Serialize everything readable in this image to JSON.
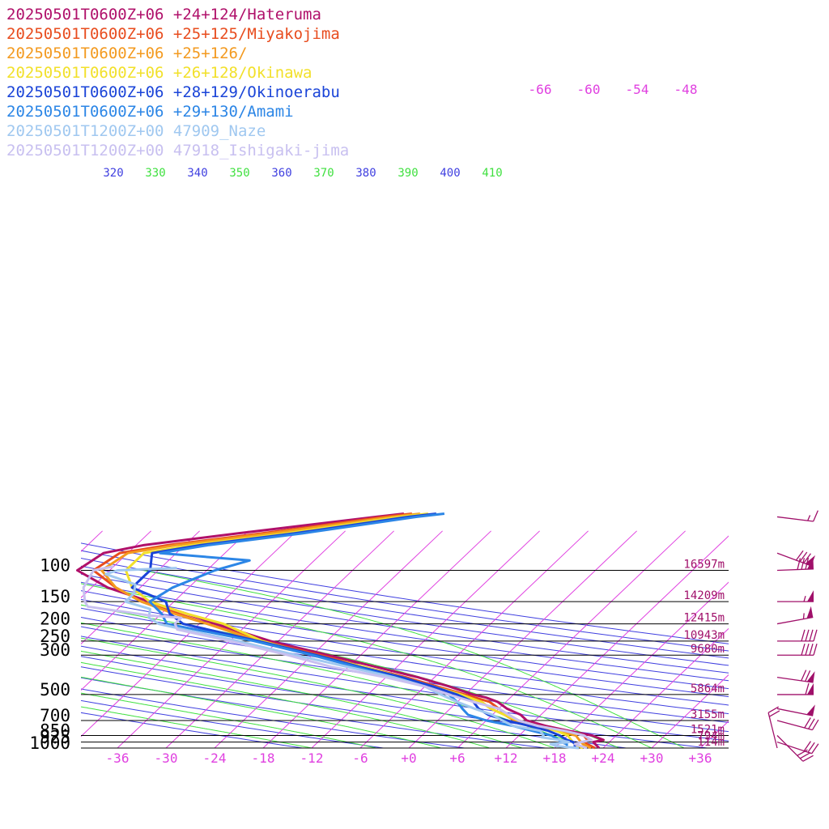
{
  "colors": {
    "isotherm": "#e040e0",
    "dry_adiabat": "#4040e0",
    "moist_adiabat": "#40e040",
    "isobar": "#000000",
    "height_label": "#a0106a",
    "wind_barb": "#a0106a"
  },
  "chart_data": {
    "type": "line",
    "diagram": "skew-T log-p",
    "pressure_levels": [
      100,
      150,
      200,
      250,
      300,
      500,
      700,
      850,
      925,
      1000
    ],
    "pressure_tick_labels": [
      "100",
      "150",
      "200",
      "250",
      "300",
      "500",
      "700",
      "850",
      "925",
      "1000"
    ],
    "height_labels": [
      {
        "p": 100,
        "label": "16597m"
      },
      {
        "p": 150,
        "label": "14209m"
      },
      {
        "p": 200,
        "label": "12415m"
      },
      {
        "p": 250,
        "label": "10943m"
      },
      {
        "p": 300,
        "label": "9680m"
      },
      {
        "p": 500,
        "label": "5864m"
      },
      {
        "p": 700,
        "label": "3155m"
      },
      {
        "p": 850,
        "label": "1521m"
      },
      {
        "p": 925,
        "label": "794m"
      },
      {
        "p": 1000,
        "label": "114m"
      }
    ],
    "temperature_ticks": [
      -36,
      -30,
      -24,
      -18,
      -12,
      -6,
      0,
      6,
      12,
      18,
      24,
      30,
      36
    ],
    "temperature_tick_labels": [
      "-36",
      "-30",
      "-24",
      "-18",
      "-12",
      "-6",
      "+0",
      "+6",
      "+12",
      "+18",
      "+24",
      "+30",
      "+36"
    ],
    "upper_isotherm_labels": [
      "-66",
      "-60",
      "-54",
      "-48"
    ],
    "theta_labels": [
      {
        "label": "320",
        "kind": "dry"
      },
      {
        "label": "330",
        "kind": "moist"
      },
      {
        "label": "340",
        "kind": "dry"
      },
      {
        "label": "350",
        "kind": "moist"
      },
      {
        "label": "360",
        "kind": "dry"
      },
      {
        "label": "370",
        "kind": "moist"
      },
      {
        "label": "380",
        "kind": "dry"
      },
      {
        "label": "390",
        "kind": "moist"
      },
      {
        "label": "400",
        "kind": "dry"
      },
      {
        "label": "410",
        "kind": "moist"
      }
    ],
    "series": [
      {
        "name": "20250501T0600Z+06 +24+124/Hateruma",
        "color": "#b0106a",
        "points": [
          [
            1000,
            23.5
          ],
          [
            950,
            22.5
          ],
          [
            925,
            22
          ],
          [
            900,
            23
          ],
          [
            850,
            21
          ],
          [
            800,
            17.5
          ],
          [
            750,
            14
          ],
          [
            700,
            11
          ],
          [
            650,
            9.5
          ],
          [
            600,
            7
          ],
          [
            550,
            5
          ],
          [
            520,
            3
          ],
          [
            500,
            1
          ],
          [
            450,
            -3
          ],
          [
            400,
            -8
          ],
          [
            350,
            -14.5
          ],
          [
            300,
            -22
          ],
          [
            250,
            -31
          ],
          [
            200,
            -40
          ],
          [
            175,
            -45
          ],
          [
            150,
            -51
          ],
          [
            125,
            -58
          ],
          [
            100,
            -64
          ],
          [
            80,
            -63
          ],
          [
            72,
            -59
          ],
          [
            62,
            -49
          ],
          [
            50,
            -34
          ],
          [
            48,
            -31
          ]
        ]
      },
      {
        "name": "20250501T0600Z+06 +25+125/Miyakojima",
        "color": "#e84c1e",
        "points": [
          [
            1000,
            23
          ],
          [
            950,
            21.5
          ],
          [
            925,
            21
          ],
          [
            900,
            21
          ],
          [
            850,
            20
          ],
          [
            800,
            17
          ],
          [
            750,
            13
          ],
          [
            700,
            10
          ],
          [
            650,
            8
          ],
          [
            600,
            6
          ],
          [
            550,
            4
          ],
          [
            500,
            0
          ],
          [
            450,
            -4.5
          ],
          [
            400,
            -9.5
          ],
          [
            350,
            -16
          ],
          [
            300,
            -23
          ],
          [
            250,
            -32
          ],
          [
            200,
            -41
          ],
          [
            175,
            -46
          ],
          [
            150,
            -52
          ],
          [
            125,
            -57
          ],
          [
            100,
            -62
          ],
          [
            80,
            -61
          ],
          [
            72,
            -56
          ],
          [
            62,
            -46
          ],
          [
            50,
            -33
          ],
          [
            48,
            -30
          ]
        ]
      },
      {
        "name": "20250501T0600Z+06 +25+126/",
        "color": "#f39a1f",
        "points": [
          [
            1000,
            22.5
          ],
          [
            950,
            21
          ],
          [
            925,
            20.5
          ],
          [
            900,
            20
          ],
          [
            850,
            19
          ],
          [
            800,
            16
          ],
          [
            750,
            13
          ],
          [
            700,
            9.5
          ],
          [
            650,
            7.5
          ],
          [
            600,
            5
          ],
          [
            550,
            3
          ],
          [
            500,
            -0.5
          ],
          [
            450,
            -5
          ],
          [
            400,
            -10
          ],
          [
            350,
            -16.5
          ],
          [
            300,
            -23.5
          ],
          [
            250,
            -32.5
          ],
          [
            200,
            -41
          ],
          [
            175,
            -46.5
          ],
          [
            150,
            -52
          ],
          [
            125,
            -57
          ],
          [
            100,
            -61
          ],
          [
            80,
            -60
          ],
          [
            72,
            -55
          ],
          [
            62,
            -45
          ],
          [
            50,
            -32
          ],
          [
            48,
            -29
          ]
        ]
      },
      {
        "name": "20250501T0600Z+06 +26+128/Okinawa",
        "color": "#f2e02a",
        "points": [
          [
            1000,
            21.5
          ],
          [
            950,
            20
          ],
          [
            925,
            19.5
          ],
          [
            900,
            19
          ],
          [
            850,
            18
          ],
          [
            800,
            16
          ],
          [
            750,
            13
          ],
          [
            700,
            10
          ],
          [
            650,
            7.5
          ],
          [
            600,
            5
          ],
          [
            550,
            3
          ],
          [
            500,
            -0.5
          ],
          [
            450,
            -5
          ],
          [
            400,
            -10
          ],
          [
            350,
            -16
          ],
          [
            300,
            -24
          ],
          [
            250,
            -32
          ],
          [
            200,
            -39
          ],
          [
            175,
            -45
          ],
          [
            150,
            -51
          ],
          [
            125,
            -55
          ],
          [
            100,
            -58
          ],
          [
            80,
            -58
          ],
          [
            72,
            -53
          ],
          [
            62,
            -43
          ],
          [
            50,
            -31
          ],
          [
            48,
            -28
          ]
        ]
      },
      {
        "name": "20250501T0600Z+06 +28+129/Okinoerabu",
        "color": "#1a44d8",
        "points": [
          [
            1000,
            20.5
          ],
          [
            950,
            20
          ],
          [
            925,
            19.5
          ],
          [
            900,
            18.5
          ],
          [
            850,
            17
          ],
          [
            800,
            15
          ],
          [
            750,
            12
          ],
          [
            700,
            8.5
          ],
          [
            650,
            5.5
          ],
          [
            600,
            3.5
          ],
          [
            550,
            2
          ],
          [
            500,
            -1
          ],
          [
            450,
            -5
          ],
          [
            400,
            -10
          ],
          [
            350,
            -16.5
          ],
          [
            300,
            -23.5
          ],
          [
            250,
            -32.5
          ],
          [
            200,
            -44
          ],
          [
            175,
            -47
          ],
          [
            150,
            -49
          ],
          [
            125,
            -55
          ],
          [
            100,
            -55
          ],
          [
            80,
            -57
          ],
          [
            72,
            -52
          ],
          [
            62,
            -42
          ],
          [
            50,
            -30
          ],
          [
            48,
            -27
          ]
        ]
      },
      {
        "name": "20250501T0600Z+06 +29+130/Amami",
        "color": "#2c86e6",
        "points": [
          [
            1000,
            19.5
          ],
          [
            950,
            19
          ],
          [
            925,
            18
          ],
          [
            900,
            17.5
          ],
          [
            850,
            16
          ],
          [
            800,
            13
          ],
          [
            750,
            10
          ],
          [
            700,
            6
          ],
          [
            650,
            3
          ],
          [
            600,
            1.5
          ],
          [
            550,
            0
          ],
          [
            500,
            -2
          ],
          [
            450,
            -6
          ],
          [
            400,
            -11
          ],
          [
            350,
            -17
          ],
          [
            300,
            -24
          ],
          [
            250,
            -33
          ],
          [
            200,
            -46
          ],
          [
            175,
            -48
          ],
          [
            150,
            -51
          ],
          [
            125,
            -50
          ],
          [
            100,
            -47
          ],
          [
            88,
            -44
          ],
          [
            80,
            -56
          ],
          [
            72,
            -51
          ],
          [
            62,
            -41
          ],
          [
            50,
            -29
          ],
          [
            48,
            -26
          ]
        ]
      },
      {
        "name": "20250501T1200Z+00 47909_Naze",
        "color": "#a0c8f0",
        "points": [
          [
            1000,
            21
          ],
          [
            975,
            18
          ],
          [
            950,
            17
          ],
          [
            925,
            19
          ],
          [
            900,
            17.5
          ],
          [
            870,
            15
          ],
          [
            850,
            15
          ],
          [
            800,
            14
          ],
          [
            750,
            10
          ],
          [
            700,
            8
          ],
          [
            650,
            6
          ],
          [
            600,
            3
          ],
          [
            550,
            0
          ],
          [
            500,
            -3
          ],
          [
            450,
            -6
          ],
          [
            400,
            -11
          ],
          [
            350,
            -18
          ],
          [
            300,
            -26
          ],
          [
            250,
            -35
          ],
          [
            220,
            -42
          ],
          [
            200,
            -47
          ],
          [
            185,
            -49
          ],
          [
            165,
            -50
          ],
          [
            150,
            -54
          ],
          [
            135,
            -54
          ],
          [
            120,
            -55
          ],
          [
            105,
            -60
          ],
          [
            100,
            -59
          ],
          [
            97,
            -52
          ]
        ]
      },
      {
        "name": "20250501T1200Z+00 47918_Ishigaki-jima",
        "color": "#c8c0f0",
        "points": [
          [
            1000,
            22
          ],
          [
            950,
            20
          ],
          [
            925,
            20.5
          ],
          [
            900,
            21.5
          ],
          [
            850,
            20
          ],
          [
            800,
            17
          ],
          [
            750,
            13
          ],
          [
            700,
            10
          ],
          [
            650,
            8
          ],
          [
            600,
            6
          ],
          [
            550,
            2
          ],
          [
            500,
            -2
          ],
          [
            450,
            -6
          ],
          [
            400,
            -12
          ],
          [
            350,
            -20
          ],
          [
            300,
            -27
          ],
          [
            250,
            -36
          ],
          [
            215,
            -44
          ],
          [
            200,
            -45
          ],
          [
            185,
            -45
          ],
          [
            180,
            -49
          ],
          [
            160,
            -58
          ],
          [
            150,
            -59
          ],
          [
            125,
            -61
          ],
          [
            100,
            -62
          ],
          [
            95,
            -60
          ]
        ]
      }
    ],
    "wind_barbs": [
      {
        "p": 50,
        "u": -16,
        "v": 2
      },
      {
        "p": 80,
        "u": -75,
        "v": 28
      },
      {
        "p": 100,
        "u": -80,
        "v": -3
      },
      {
        "p": 150,
        "u": -55,
        "v": 0
      },
      {
        "p": 200,
        "u": -55,
        "v": -10
      },
      {
        "p": 250,
        "u": -40,
        "v": 0
      },
      {
        "p": 300,
        "u": -40,
        "v": 0
      },
      {
        "p": 400,
        "u": -70,
        "v": 10
      },
      {
        "p": 500,
        "u": -60,
        "v": 0
      },
      {
        "p": 600,
        "u": -50,
        "v": 10
      },
      {
        "p": 700,
        "u": -30,
        "v": 8
      },
      {
        "p": 850,
        "u": -20,
        "v": 20
      },
      {
        "p": 925,
        "u": -30,
        "v": 10
      },
      {
        "p": 1000,
        "u": 5,
        "v": -20
      }
    ]
  }
}
